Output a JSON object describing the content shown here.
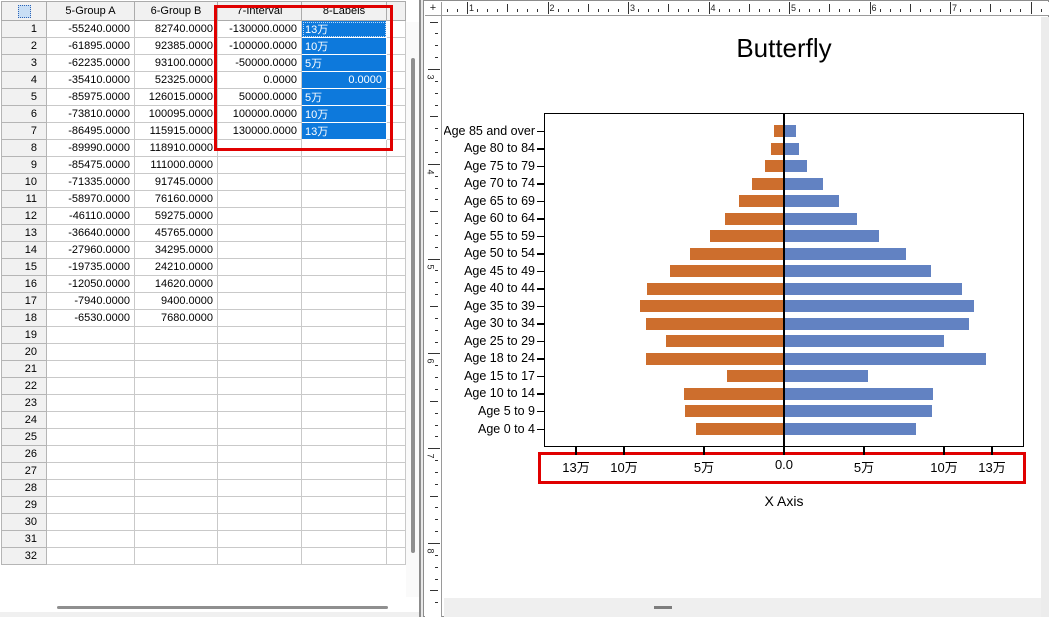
{
  "worksheet": {
    "columns": [
      "5-Group A",
      "6-Group B",
      "7-Interval",
      "8-Labels"
    ],
    "selection_color": "#0d79dc",
    "highlight_color": "#e00000",
    "rows": [
      {
        "n": 1,
        "a": "-55240.0000",
        "b": "82740.0000",
        "interval": "-130000.0000",
        "label": "13万",
        "selected": true,
        "active": true
      },
      {
        "n": 2,
        "a": "-61895.0000",
        "b": "92385.0000",
        "interval": "-100000.0000",
        "label": "10万",
        "selected": true
      },
      {
        "n": 3,
        "a": "-62235.0000",
        "b": "93100.0000",
        "interval": "-50000.0000",
        "label": "5万",
        "selected": true
      },
      {
        "n": 4,
        "a": "-35410.0000",
        "b": "52325.0000",
        "interval": "0.0000",
        "label": "0.0000",
        "selected": true,
        "label_align": "right"
      },
      {
        "n": 5,
        "a": "-85975.0000",
        "b": "126015.0000",
        "interval": "50000.0000",
        "label": "5万",
        "selected": true
      },
      {
        "n": 6,
        "a": "-73810.0000",
        "b": "100095.0000",
        "interval": "100000.0000",
        "label": "10万",
        "selected": true
      },
      {
        "n": 7,
        "a": "-86495.0000",
        "b": "115915.0000",
        "interval": "130000.0000",
        "label": "13万",
        "selected": true
      },
      {
        "n": 8,
        "a": "-89990.0000",
        "b": "118910.0000"
      },
      {
        "n": 9,
        "a": "-85475.0000",
        "b": "111000.0000"
      },
      {
        "n": 10,
        "a": "-71335.0000",
        "b": "91745.0000"
      },
      {
        "n": 11,
        "a": "-58970.0000",
        "b": "76160.0000"
      },
      {
        "n": 12,
        "a": "-46110.0000",
        "b": "59275.0000"
      },
      {
        "n": 13,
        "a": "-36640.0000",
        "b": "45765.0000"
      },
      {
        "n": 14,
        "a": "-27960.0000",
        "b": "34295.0000"
      },
      {
        "n": 15,
        "a": "-19735.0000",
        "b": "24210.0000"
      },
      {
        "n": 16,
        "a": "-12050.0000",
        "b": "14620.0000"
      },
      {
        "n": 17,
        "a": "-7940.0000",
        "b": "9400.0000"
      },
      {
        "n": 18,
        "a": "-6530.0000",
        "b": "7680.0000"
      },
      {
        "n": 19
      },
      {
        "n": 20
      },
      {
        "n": 21
      },
      {
        "n": 22
      },
      {
        "n": 23
      },
      {
        "n": 24
      },
      {
        "n": 25
      },
      {
        "n": 26
      },
      {
        "n": 27
      },
      {
        "n": 28
      },
      {
        "n": 29
      },
      {
        "n": 30
      },
      {
        "n": 31
      },
      {
        "n": 32
      }
    ]
  },
  "graph": {
    "corner_glyph": "+",
    "h_ruler_numbers": [
      1,
      2,
      3,
      4,
      5,
      6,
      7
    ],
    "v_ruler_numbers": [
      3,
      4,
      5,
      6,
      7,
      8
    ]
  },
  "chart_data": {
    "type": "bar",
    "subtype": "butterfly-pyramid",
    "title": "Butterfly",
    "xlabel": "X Axis",
    "ylabel": "",
    "grid": false,
    "legend": "none",
    "xlim": [
      -150000,
      150000
    ],
    "categories": [
      "Age 85 and over",
      "Age 80 to 84",
      "Age 75 to 79",
      "Age 70 to 74",
      "Age 65 to 69",
      "Age 60 to 64",
      "Age 55 to 59",
      "Age 50 to 54",
      "Age 45 to 49",
      "Age 40 to 44",
      "Age 35 to 39",
      "Age 30 to 34",
      "Age 25 to 29",
      "Age 18 to 24",
      "Age 15 to 17",
      "Age 10 to 14",
      "Age 5 to 9",
      "Age 0 to 4"
    ],
    "series": [
      {
        "name": "Group A",
        "side": "left",
        "color": "#cd6e2d",
        "values": [
          -6530,
          -7940,
          -12050,
          -19735,
          -27960,
          -36640,
          -46110,
          -58970,
          -71335,
          -85475,
          -89990,
          -86495,
          -73810,
          -85975,
          -35410,
          -62235,
          -61895,
          -55240
        ]
      },
      {
        "name": "Group B",
        "side": "right",
        "color": "#6282c2",
        "values": [
          7680,
          9400,
          14620,
          24210,
          34295,
          45765,
          59275,
          76160,
          91745,
          111000,
          118910,
          115915,
          100095,
          126015,
          52325,
          93100,
          92385,
          82740
        ]
      }
    ],
    "x_ticks": [
      {
        "value": -130000,
        "label": "13万"
      },
      {
        "value": -100000,
        "label": "10万"
      },
      {
        "value": -50000,
        "label": "5万"
      },
      {
        "value": 0,
        "label": "0.0"
      },
      {
        "value": 50000,
        "label": "5万"
      },
      {
        "value": 100000,
        "label": "10万"
      },
      {
        "value": 130000,
        "label": "13万"
      }
    ]
  }
}
